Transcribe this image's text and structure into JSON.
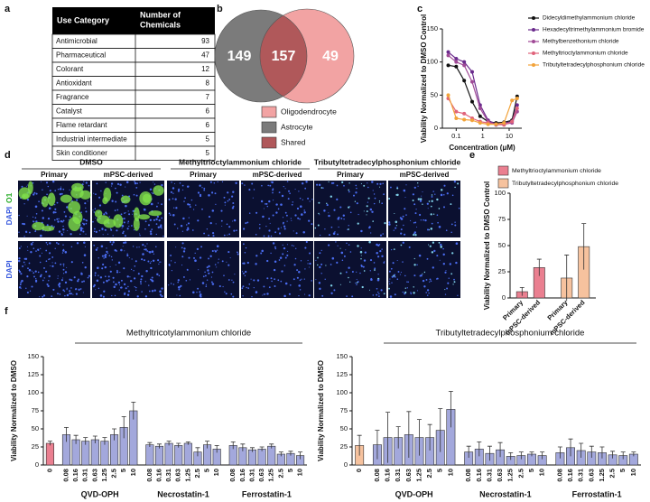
{
  "panel_labels": [
    "a",
    "b",
    "c",
    "d",
    "e",
    "f"
  ],
  "table": {
    "header": [
      "Use Category",
      [
        "Number of",
        "Chemicals"
      ]
    ],
    "rows": [
      [
        "Antimicrobial",
        93
      ],
      [
        "Pharmaceutical",
        47
      ],
      [
        "Colorant",
        12
      ],
      [
        "Antioxidant",
        8
      ],
      [
        "Fragrance",
        7
      ],
      [
        "Catalyst",
        6
      ],
      [
        "Flame retardant",
        6
      ],
      [
        "Industrial intermediate",
        5
      ],
      [
        "Skin conditioner",
        5
      ]
    ]
  },
  "venn": {
    "astrocyte_only": 149,
    "shared": 157,
    "oligodendrocyte_only": 49,
    "legend": [
      {
        "label": "Oligodendrocyte",
        "color": "#f2a3a3"
      },
      {
        "label": "Astrocyte",
        "color": "#7b7b7b"
      },
      {
        "label": "Shared",
        "color": "#b0585a"
      }
    ]
  },
  "microscopy": {
    "groups": [
      {
        "title": "DMSO",
        "columns": [
          "Primary",
          "mPSC-derived"
        ]
      },
      {
        "title": "Methyltrioctylammonium chloride",
        "columns": [
          "Primary",
          "mPSC-derived"
        ]
      },
      {
        "title": "Tributyltetradecylphosphonium chloride",
        "columns": [
          "Primary",
          "mPSC-derived"
        ]
      }
    ],
    "rows": [
      [
        "DAPI",
        "O1"
      ],
      [
        "DAPI"
      ]
    ]
  },
  "chart_data": [
    {
      "type": "line",
      "xscale": "log",
      "xlabel": "Concentration (μM)",
      "ylabel": "Viability Normalized to DMSO Control",
      "x": [
        0.05,
        0.1,
        0.2,
        0.4,
        0.8,
        1.6,
        3.2,
        6.4,
        12.8,
        20
      ],
      "xlim": [
        0.03,
        30
      ],
      "xticks": [
        0.1,
        1,
        10
      ],
      "ylim": [
        0,
        150
      ],
      "yticks": [
        0,
        50,
        100,
        150
      ],
      "series": [
        {
          "name": "Didecyldimethylammonium chloride",
          "color": "#111111",
          "values": [
            95,
            93,
            72,
            40,
            18,
            10,
            8,
            9,
            12,
            48
          ]
        },
        {
          "name": "Hexadecyltrimethylammonium bromide",
          "color": "#6a2a8c",
          "values": [
            115,
            105,
            100,
            85,
            35,
            12,
            6,
            8,
            10,
            35
          ]
        },
        {
          "name": "Methylbenzethonium chloride",
          "color": "#a04a96",
          "values": [
            110,
            100,
            95,
            70,
            30,
            10,
            5,
            6,
            8,
            25
          ]
        },
        {
          "name": "Methyltrioctylammonium chloride",
          "color": "#e0637a",
          "values": [
            45,
            25,
            22,
            15,
            10,
            8,
            6,
            5,
            10,
            30
          ]
        },
        {
          "name": "Tributyltetradecylphosphonium chloride",
          "color": "#f2a33a",
          "values": [
            50,
            15,
            13,
            12,
            8,
            6,
            6,
            8,
            42,
            45
          ]
        }
      ]
    },
    {
      "type": "bar",
      "ylabel": "Viability Normalized to DMSO Control",
      "categories": [
        "Primary",
        "mPSC-derived",
        "Primary",
        "mPSC-derived"
      ],
      "ylim": [
        0,
        100
      ],
      "yticks": [
        0,
        25,
        50,
        75,
        100
      ],
      "series": [
        {
          "name": "Methyltrioctylammonium chloride",
          "color": "#ea7f90",
          "values": [
            6,
            29,
            null,
            null
          ],
          "errors": [
            4,
            8,
            null,
            null
          ]
        },
        {
          "name": "Tributyltetradecylphosphonium chloride",
          "color": "#f6c29e",
          "values": [
            null,
            null,
            19,
            49
          ],
          "errors": [
            null,
            null,
            22,
            22
          ]
        }
      ]
    },
    {
      "type": "bar",
      "title": "Methyltricotylammonium chloride",
      "ylabel": "Viability Normalized to DMSO",
      "categories": [
        "0",
        "0.08",
        "0.16",
        "0.31",
        "0.63",
        "1.25",
        "2.5",
        "5",
        "10",
        "0.08",
        "0.16",
        "0.31",
        "0.63",
        "1.25",
        "2.5",
        "5",
        "10",
        "0.08",
        "0.16",
        "0.31",
        "0.63",
        "1.25",
        "2.5",
        "5",
        "10"
      ],
      "groups": [
        "QVD-OPH",
        "Necrostatin-1",
        "Ferrostatin-1"
      ],
      "ylim": [
        0,
        150
      ],
      "yticks": [
        0,
        25,
        50,
        75,
        100,
        125,
        150
      ],
      "color": "#a3a8dc",
      "control_color": "#ea7f90",
      "values": [
        30,
        42,
        35,
        33,
        35,
        33,
        42,
        52,
        75,
        28,
        26,
        30,
        27,
        30,
        18,
        28,
        22,
        27,
        24,
        21,
        22,
        26,
        15,
        16,
        13
      ],
      "errors": [
        3,
        10,
        6,
        5,
        5,
        5,
        8,
        15,
        12,
        3,
        3,
        3,
        3,
        2,
        6,
        5,
        5,
        5,
        5,
        3,
        3,
        3,
        3,
        3,
        5
      ]
    },
    {
      "type": "bar",
      "title": "Tributyltetradecylphosphonium chloride",
      "ylabel": "Viability Normalized to DMSO",
      "categories": [
        "0",
        "0.08",
        "0.16",
        "0.31",
        "0.63",
        "1.25",
        "2.5",
        "5",
        "10",
        "0.08",
        "0.16",
        "0.31",
        "0.63",
        "1.25",
        "2.5",
        "5",
        "10",
        "0.08",
        "0.16",
        "0.31",
        "0.63",
        "1.25",
        "2.5",
        "5",
        "10"
      ],
      "groups": [
        "QVD-OPH",
        "Necrostatin-1",
        "Ferrostatin-1"
      ],
      "ylim": [
        0,
        150
      ],
      "yticks": [
        0,
        25,
        50,
        75,
        100,
        125,
        150
      ],
      "color": "#a3a8dc",
      "control_color": "#f6c29e",
      "values": [
        27,
        28,
        38,
        38,
        42,
        38,
        38,
        48,
        77,
        18,
        22,
        16,
        21,
        12,
        13,
        15,
        13,
        17,
        24,
        20,
        18,
        17,
        14,
        13,
        15
      ],
      "errors": [
        14,
        20,
        35,
        15,
        32,
        25,
        18,
        30,
        25,
        8,
        10,
        10,
        10,
        5,
        5,
        3,
        5,
        8,
        12,
        10,
        8,
        8,
        5,
        5,
        3
      ]
    }
  ]
}
